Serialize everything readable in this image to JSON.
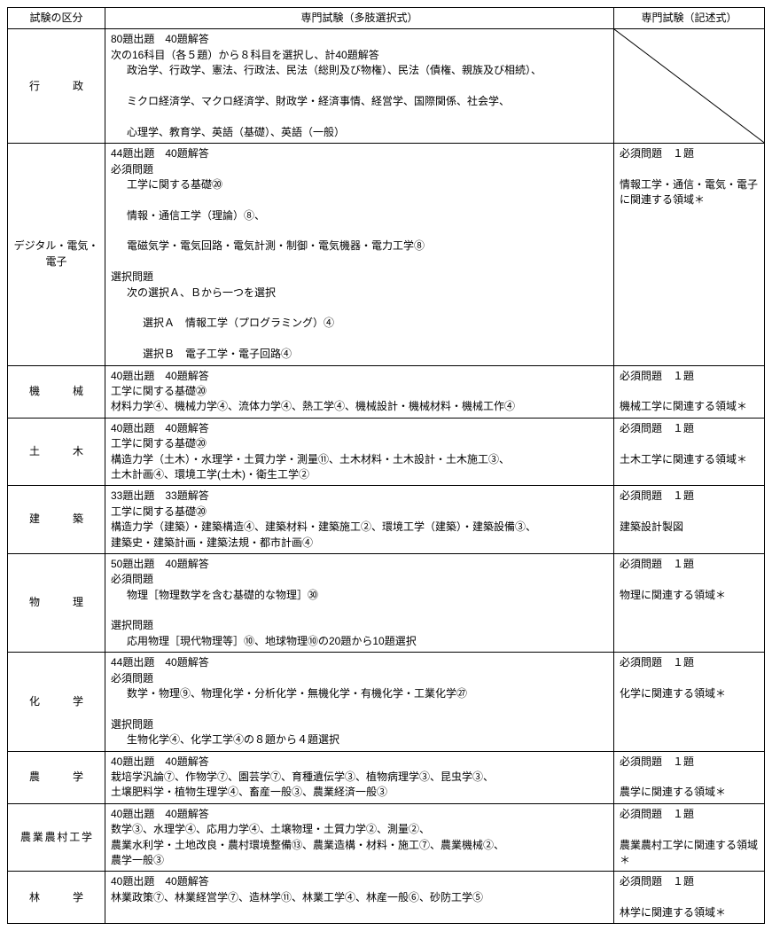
{
  "header": {
    "category": "試験の区分",
    "multi": "専門試験（多肢選択式）",
    "written": "専門試験（記述式）"
  },
  "rows": [
    {
      "cat": [
        "行",
        "政"
      ],
      "multi": {
        "head": "80題出題　40題解答",
        "lead": "次の16科目（各５題）から８科目を選択し、計40題解答",
        "body": [
          "政治学、行政学、憲法、行政法、民法（総則及び物権）、民法（債権、親族及び相続）、",
          "ミクロ経済学、マクロ経済学、財政学・経済事情、経営学、国際関係、社会学、",
          "心理学、教育学、英語（基礎）、英語（一般）"
        ]
      },
      "written": {
        "slash": true
      }
    },
    {
      "cat_single": "デジタル・電気・電子",
      "multi": {
        "head": "44題出題　40題解答",
        "must_label": "必須問題",
        "must": [
          "工学に関する基礎⑳",
          "情報・通信工学（理論）⑧、",
          "電磁気学・電気回路・電気計測・制御・電気機器・電力工学⑧"
        ],
        "sel_label": "選択問題",
        "sel_lead": "次の選択Ａ、Ｂから一つを選択",
        "sel": [
          "選択Ａ　情報工学（プログラミング）④",
          "選択Ｂ　電子工学・電子回路④"
        ]
      },
      "written": {
        "l1": "必須問題　１題",
        "l2": "情報工学・通信・電気・電子に関連する領域＊"
      }
    },
    {
      "cat": [
        "機",
        "械"
      ],
      "multi": {
        "head": "40題出題　40題解答",
        "flat": [
          "工学に関する基礎⑳",
          "材料力学④、機械力学④、流体力学④、熱工学④、機械設計・機械材料・機械工作④"
        ]
      },
      "written": {
        "l1": "必須問題　１題",
        "l2": "機械工学に関連する領域＊"
      }
    },
    {
      "cat": [
        "土",
        "木"
      ],
      "multi": {
        "head": "40題出題　40題解答",
        "flat": [
          "工学に関する基礎⑳",
          "構造力学（土木）・水理学・土質力学・測量⑪、土木材料・土木設計・土木施工③、",
          "土木計画④、環境工学(土木)・衛生工学②"
        ]
      },
      "written": {
        "l1": "必須問題　１題",
        "l2": "土木工学に関連する領域＊"
      }
    },
    {
      "cat": [
        "建",
        "築"
      ],
      "multi": {
        "head": "33題出題　33題解答",
        "flat": [
          "工学に関する基礎⑳",
          "構造力学（建築）・建築構造④、建築材料・建築施工②、環境工学（建築）・建築設備③、",
          "建築史・建築計画・建築法規・都市計画④"
        ]
      },
      "written": {
        "l1": "必須問題　１題",
        "l2": "建築設計製図"
      }
    },
    {
      "cat": [
        "物",
        "理"
      ],
      "multi": {
        "head": "50題出題　40題解答",
        "must_label": "必須問題",
        "must": [
          "物理［物理数学を含む基礎的な物理］㉚"
        ],
        "sel_label": "選択問題",
        "sel_flat": [
          "応用物理［現代物理等］⑩、地球物理⑩の20題から10題選択"
        ]
      },
      "written": {
        "l1": "必須問題　１題",
        "l2": "物理に関連する領域＊"
      }
    },
    {
      "cat": [
        "化",
        "学"
      ],
      "multi": {
        "head": "44題出題　40題解答",
        "must_label": "必須問題",
        "must": [
          "数学・物理⑨、物理化学・分析化学・無機化学・有機化学・工業化学㉗"
        ],
        "sel_label": "選択問題",
        "sel_flat": [
          "生物化学④、化学工学④の８題から４題選択"
        ]
      },
      "written": {
        "l1": "必須問題　１題",
        "l2": "化学に関連する領域＊"
      }
    },
    {
      "cat": [
        "農",
        "学"
      ],
      "multi": {
        "head": "40題出題　40題解答",
        "flat": [
          "栽培学汎論⑦、作物学⑦、園芸学⑦、育種遺伝学③、植物病理学③、昆虫学③、",
          "土壌肥料学・植物生理学④、畜産一般③、農業経済一般③"
        ]
      },
      "written": {
        "l1": "必須問題　１題",
        "l2": "農学に関連する領域＊"
      }
    },
    {
      "cat_single": "農業農村工学",
      "cat_tight": true,
      "multi": {
        "head": "40題出題　40題解答",
        "flat": [
          "数学③、水理学④、応用力学④、土壌物理・土質力学②、測量②、",
          "農業水利学・土地改良・農村環境整備⑬、農業造構・材料・施工⑦、農業機械②、",
          "農学一般③"
        ]
      },
      "written": {
        "l1": "必須問題　１題",
        "l2": "農業農村工学に関連する領域＊"
      }
    },
    {
      "cat": [
        "林",
        "学"
      ],
      "multi": {
        "head": "40題出題　40題解答",
        "flat": [
          "林業政策⑦、林業経営学⑦、造林学⑪、林業工学④、林産一般⑥、砂防工学⑤"
        ]
      },
      "written": {
        "l1": "必須問題　１題",
        "l2": "林学に関連する領域＊"
      }
    }
  ]
}
